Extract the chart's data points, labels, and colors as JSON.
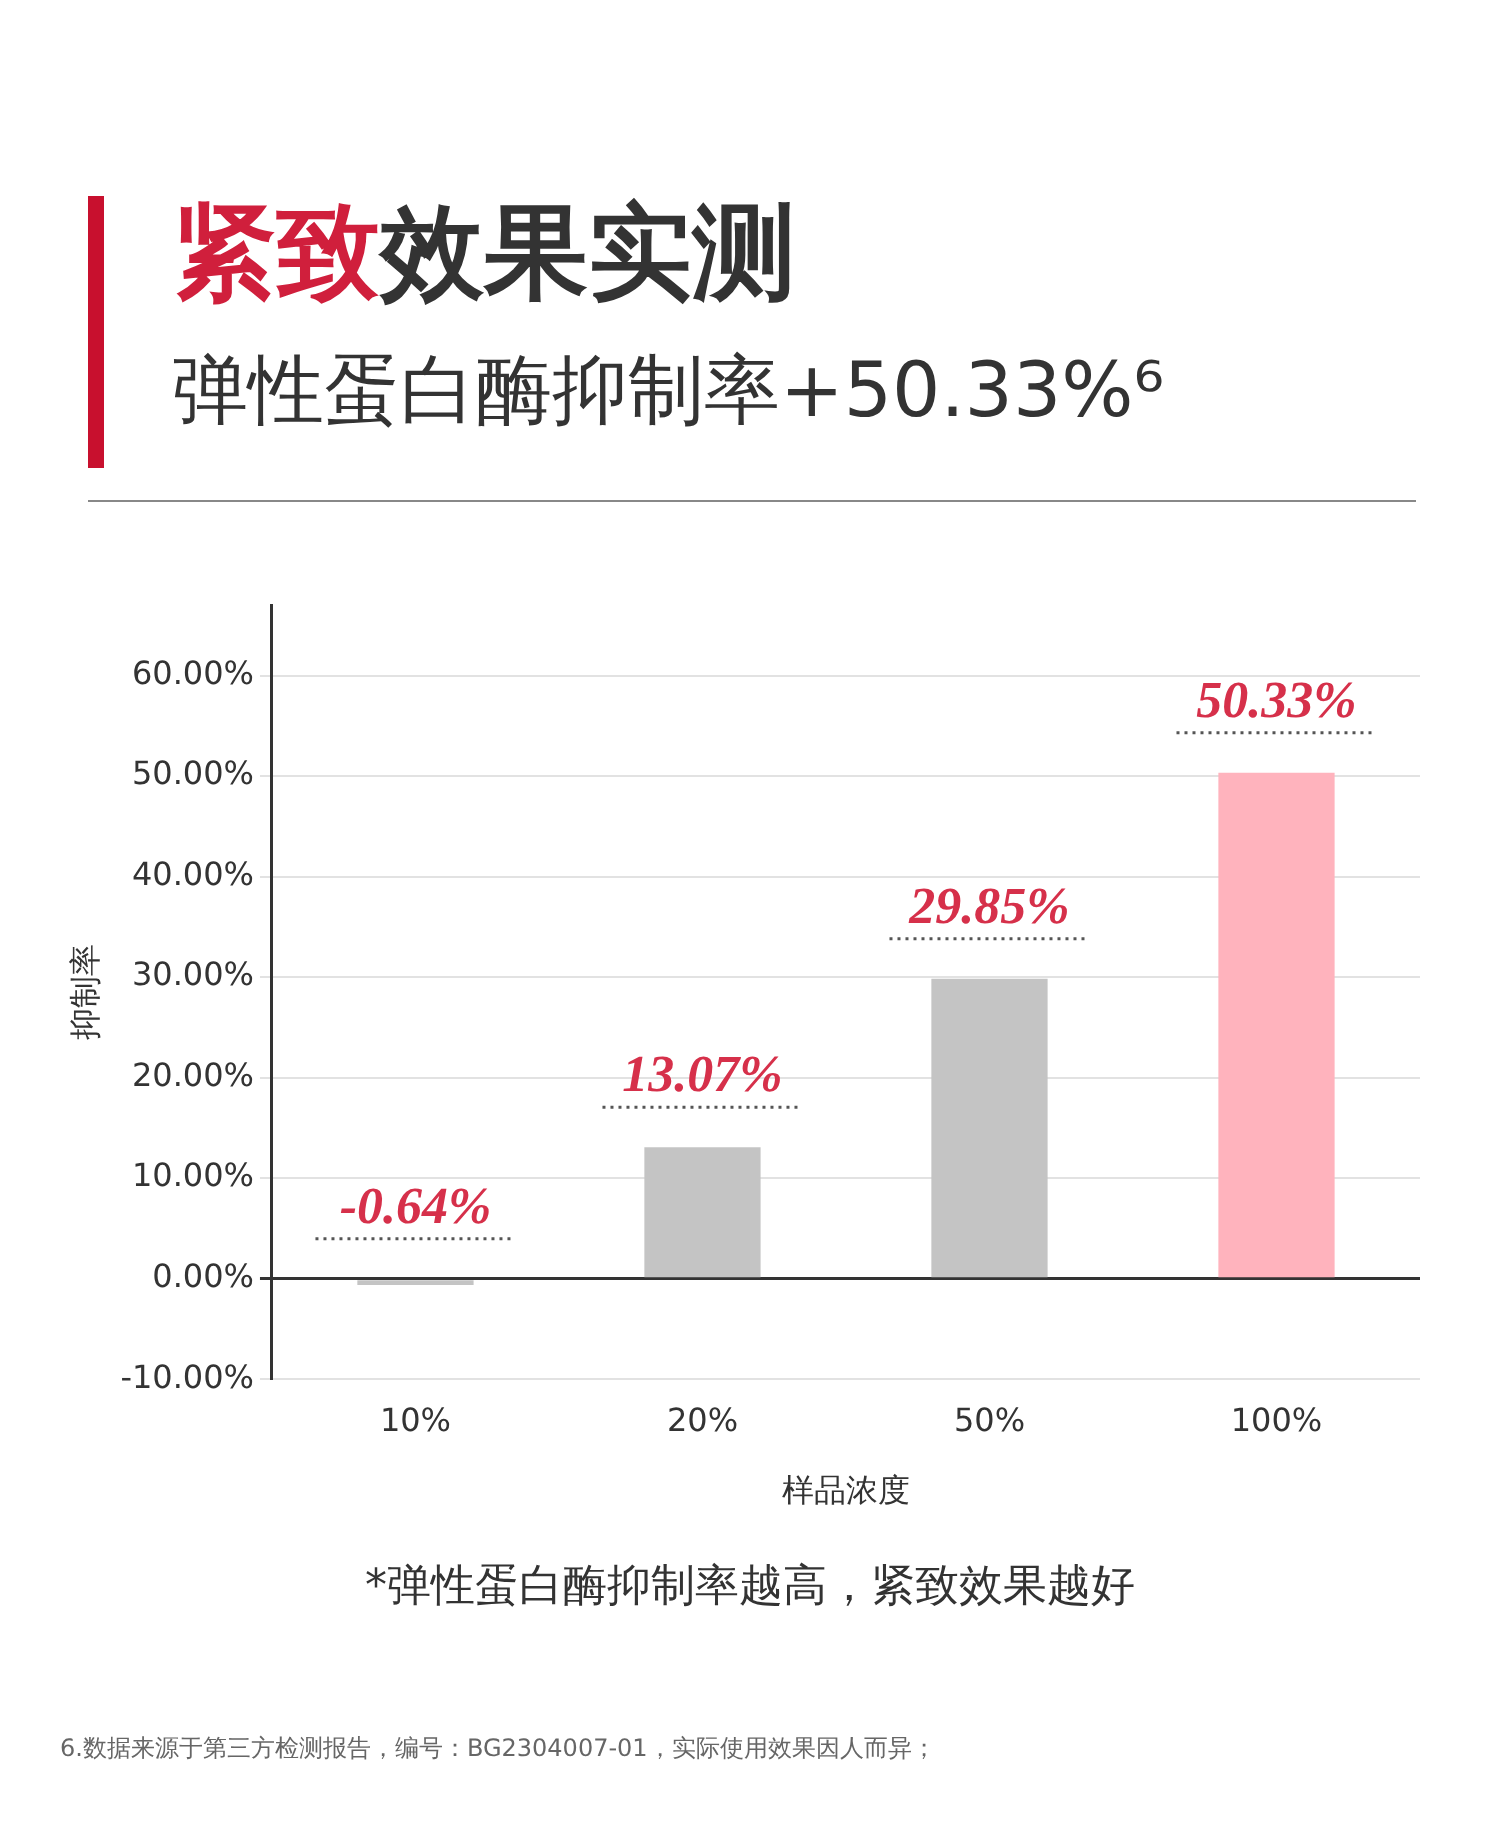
{
  "chart_data": {
    "type": "bar",
    "title": "紧致效果实测",
    "subtitle": "弹性蛋白酶抑制率+50.33%⁶",
    "xlabel": "样品浓度",
    "ylabel": "抑制率",
    "categories": [
      "10%",
      "20%",
      "50%",
      "100%"
    ],
    "values": [
      -0.64,
      13.07,
      29.85,
      50.33
    ],
    "colors": [
      "#c4c4c4",
      "#c4c4c4",
      "#c4c4c4",
      "#ffb3bd"
    ],
    "value_labels": [
      "-0.64%",
      "13.07%",
      "29.85%",
      "50.33%"
    ],
    "ylim": [
      -10,
      67
    ],
    "yticks": [
      {
        "value": -10,
        "label": "-10.00%"
      },
      {
        "value": 0,
        "label": "0.00%"
      },
      {
        "value": 10,
        "label": "10.00%"
      },
      {
        "value": 20,
        "label": "20.00%"
      },
      {
        "value": 30,
        "label": "30.00%"
      },
      {
        "value": 40,
        "label": "40.00%"
      },
      {
        "value": 50,
        "label": "50.00%"
      },
      {
        "value": 60,
        "label": "60.00%"
      }
    ],
    "grid": "y",
    "legend": false,
    "annotations": [
      "*弹性蛋白酶抑制率越高，紧致效果越好",
      "6.数据来源于第三方检测报告，编号：BG2304007-01，实际使用效果因人而异；"
    ]
  }
}
